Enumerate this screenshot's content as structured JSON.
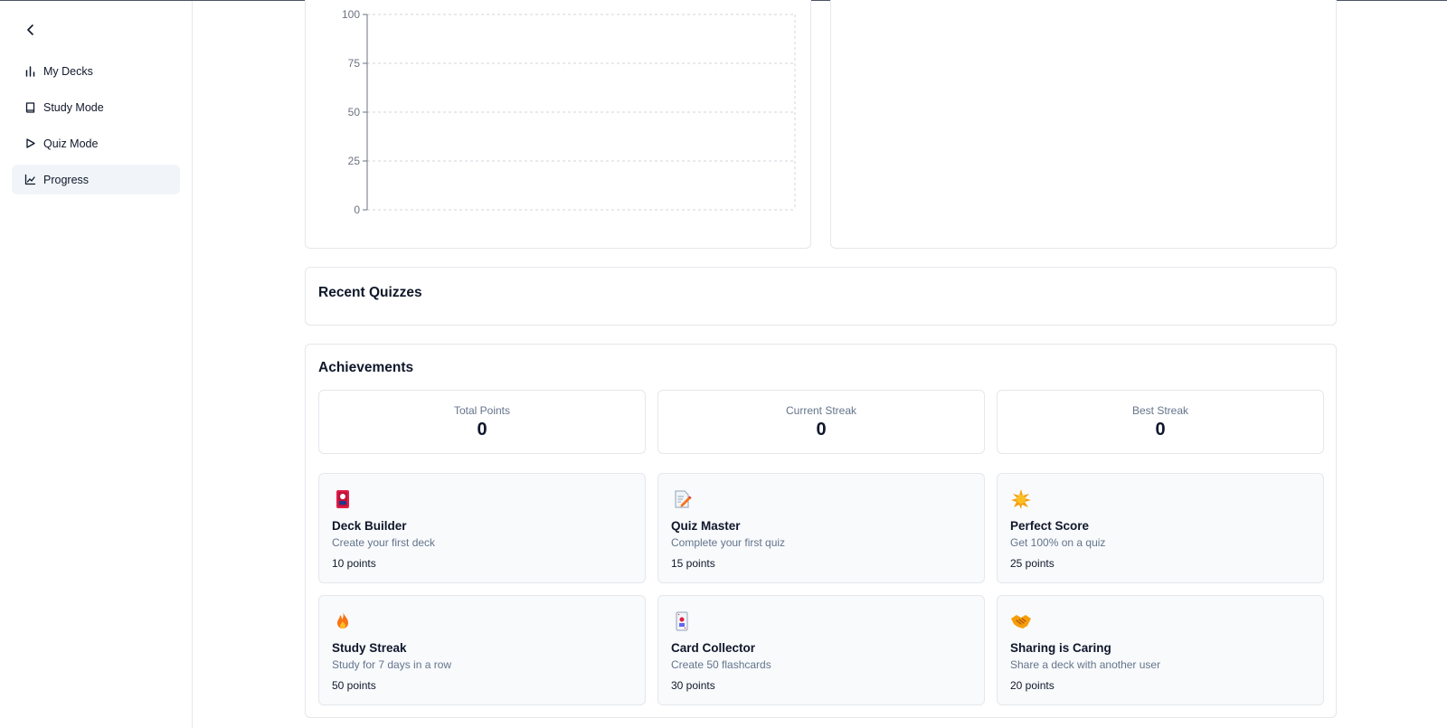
{
  "sidebar": {
    "back_icon": "chevron-left-icon",
    "items": [
      {
        "label": "My Decks",
        "icon": "bar-chart-icon"
      },
      {
        "label": "Study Mode",
        "icon": "book-icon"
      },
      {
        "label": "Quiz Mode",
        "icon": "play-icon"
      },
      {
        "label": "Progress",
        "icon": "line-chart-icon",
        "active": true
      }
    ]
  },
  "chart_data": {
    "type": "line",
    "title": "",
    "xlabel": "",
    "ylabel": "",
    "ylim": [
      0,
      100
    ],
    "yticks": [
      "100",
      "75",
      "50",
      "25",
      "0"
    ],
    "grid": true,
    "series": []
  },
  "recent_quizzes": {
    "title": "Recent Quizzes"
  },
  "achievements": {
    "title": "Achievements",
    "stats": [
      {
        "label": "Total Points",
        "value": "0"
      },
      {
        "label": "Current Streak",
        "value": "0"
      },
      {
        "label": "Best Streak",
        "value": "0"
      }
    ],
    "badges": [
      {
        "icon": "deck-icon",
        "name": "Deck Builder",
        "desc": "Create your first deck",
        "points": "10 points"
      },
      {
        "icon": "memo-icon",
        "name": "Quiz Master",
        "desc": "Complete your first quiz",
        "points": "15 points"
      },
      {
        "icon": "star-icon",
        "name": "Perfect Score",
        "desc": "Get 100% on a quiz",
        "points": "25 points"
      },
      {
        "icon": "fire-icon",
        "name": "Study Streak",
        "desc": "Study for 7 days in a row",
        "points": "50 points"
      },
      {
        "icon": "card-icon",
        "name": "Card Collector",
        "desc": "Create 50 flashcards",
        "points": "30 points"
      },
      {
        "icon": "handshake-icon",
        "name": "Sharing is Caring",
        "desc": "Share a deck with another user",
        "points": "20 points"
      }
    ],
    "colors": {
      "accent": "#e11d48",
      "muted": "#64748b",
      "border": "#e5e7eb",
      "tile_bg": "#f8fafc"
    }
  }
}
